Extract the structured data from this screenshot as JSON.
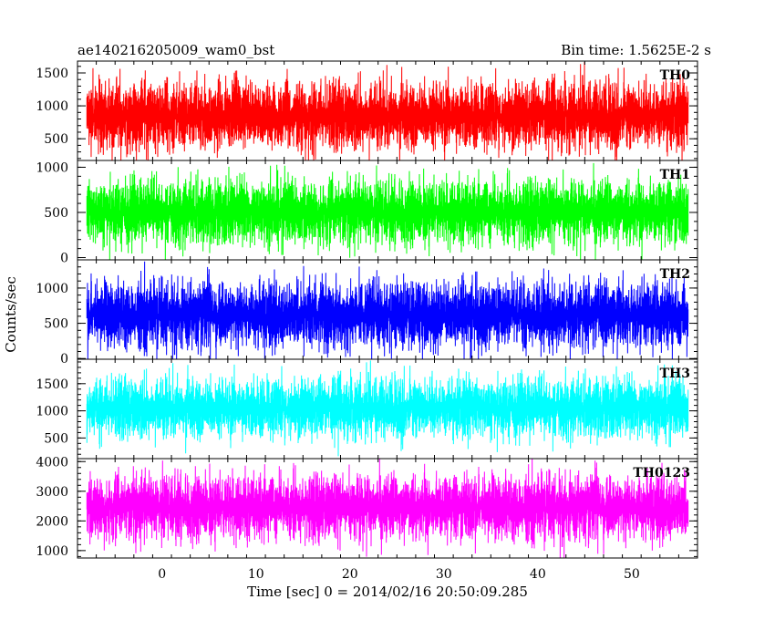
{
  "header": {
    "title": "ae140216205009_wam0_bst",
    "bin_time": "Bin time: 1.5625E-2 s"
  },
  "chart_data": {
    "type": "line",
    "xlabel": "Time [sec] 0 = 2014/02/16 20:50:09.285",
    "ylabel": "Counts/sec",
    "xlim": [
      -9,
      57
    ],
    "x_data_range": [
      -8,
      56
    ],
    "x_ticks": [
      0,
      10,
      20,
      30,
      40,
      50
    ],
    "x_tick_labels": [
      "0",
      "10",
      "20",
      "30",
      "40",
      "50"
    ],
    "bin_time_s": 0.015625,
    "panels": [
      {
        "name": "TH0",
        "color": "#ff0000",
        "ylim": [
          170,
          1680
        ],
        "y_ticks": [
          500,
          1000,
          1500
        ],
        "y_tick_labels": [
          "500",
          "1000",
          "1500"
        ],
        "mean": 850,
        "typical_min": 200,
        "typical_max": 1550
      },
      {
        "name": "TH1",
        "color": "#00ff00",
        "ylim": [
          -25,
          1075
        ],
        "y_ticks": [
          0,
          500,
          1000
        ],
        "y_tick_labels": [
          "0",
          "500",
          "1000"
        ],
        "mean": 500,
        "typical_min": 50,
        "typical_max": 1000
      },
      {
        "name": "TH2",
        "color": "#0000ff",
        "ylim": [
          -10,
          1400
        ],
        "y_ticks": [
          0,
          500,
          1000
        ],
        "y_tick_labels": [
          "0",
          "500",
          "1000"
        ],
        "mean": 620,
        "typical_min": 60,
        "typical_max": 1300
      },
      {
        "name": "TH3",
        "color": "#00ffff",
        "ylim": [
          120,
          1950
        ],
        "y_ticks": [
          500,
          1000,
          1500
        ],
        "y_tick_labels": [
          "500",
          "1000",
          "1500"
        ],
        "mean": 1050,
        "typical_min": 350,
        "typical_max": 1800
      },
      {
        "name": "TH0123",
        "color": "#ff00ff",
        "ylim": [
          750,
          4100
        ],
        "y_ticks": [
          1000,
          2000,
          3000,
          4000
        ],
        "y_tick_labels": [
          "1000",
          "2000",
          "3000",
          "4000"
        ],
        "mean": 2450,
        "typical_min": 1000,
        "typical_max": 3900
      }
    ]
  }
}
